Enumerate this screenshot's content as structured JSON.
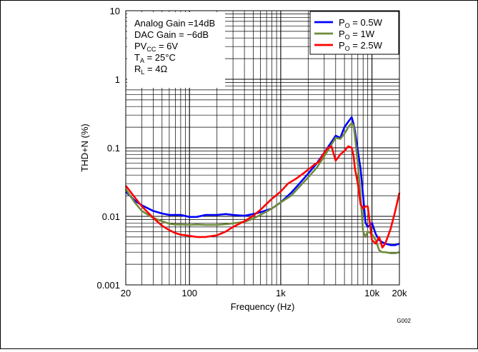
{
  "chart_data": {
    "type": "line",
    "title": "",
    "xlabel": "Frequency (Hz)",
    "ylabel": "THD+N (%)",
    "x_scale": "log",
    "y_scale": "log",
    "xlim": [
      20,
      20000
    ],
    "ylim": [
      0.001,
      10
    ],
    "grid": true,
    "x_ticks": [
      {
        "value": 20,
        "label": "20"
      },
      {
        "value": 100,
        "label": "100"
      },
      {
        "value": 1000,
        "label": "1k"
      },
      {
        "value": 10000,
        "label": "10k"
      },
      {
        "value": 20000,
        "label": "20k"
      }
    ],
    "y_ticks": [
      {
        "value": 0.001,
        "label": "0.001"
      },
      {
        "value": 0.01,
        "label": "0.01"
      },
      {
        "value": 0.1,
        "label": "0.1"
      },
      {
        "value": 1,
        "label": "1"
      },
      {
        "value": 10,
        "label": "10"
      }
    ],
    "annotation": {
      "lines": [
        "Analog Gain =14dB",
        "DAC Gain = −6dB",
        "PVCC = 6V",
        "TA = 25°C",
        "RL = 4Ω"
      ]
    },
    "legend_position": "top-right",
    "series": [
      {
        "name": "PO = 0.5W",
        "color": "#0000ff",
        "x": [
          20,
          25,
          30,
          40,
          50,
          60,
          70,
          80,
          100,
          120,
          150,
          200,
          250,
          300,
          400,
          500,
          600,
          800,
          1000,
          1300,
          1600,
          2000,
          2500,
          3000,
          3500,
          4000,
          4500,
          5000,
          5500,
          6000,
          6300,
          6500,
          7000,
          7500,
          8000,
          8500,
          9000,
          10000,
          11000,
          12000,
          13000,
          14000,
          16000,
          18000,
          20000
        ],
        "y": [
          0.023,
          0.017,
          0.0145,
          0.012,
          0.011,
          0.0105,
          0.0105,
          0.0105,
          0.0098,
          0.0098,
          0.0105,
          0.0105,
          0.0108,
          0.0105,
          0.0102,
          0.0108,
          0.0115,
          0.013,
          0.016,
          0.022,
          0.03,
          0.042,
          0.06,
          0.085,
          0.115,
          0.15,
          0.14,
          0.2,
          0.24,
          0.28,
          0.22,
          0.18,
          0.09,
          0.05,
          0.02,
          0.008,
          0.007,
          0.008,
          0.0055,
          0.0045,
          0.0042,
          0.004,
          0.0038,
          0.0038,
          0.004
        ]
      },
      {
        "name": "PO = 1W",
        "color": "#6f8b3a",
        "x": [
          20,
          25,
          30,
          40,
          50,
          60,
          70,
          80,
          100,
          120,
          150,
          200,
          250,
          300,
          400,
          500,
          600,
          800,
          1000,
          1300,
          1600,
          2000,
          2500,
          3000,
          3500,
          4000,
          4500,
          5000,
          5500,
          6000,
          6300,
          6500,
          7000,
          7500,
          8000,
          8500,
          9000,
          10000,
          11000,
          12000,
          13000,
          14000,
          16000,
          18000,
          20000
        ],
        "y": [
          0.025,
          0.016,
          0.012,
          0.0095,
          0.0085,
          0.0078,
          0.0076,
          0.0076,
          0.0075,
          0.0076,
          0.0075,
          0.0075,
          0.0077,
          0.0079,
          0.0083,
          0.0093,
          0.0105,
          0.013,
          0.016,
          0.02,
          0.027,
          0.037,
          0.052,
          0.075,
          0.105,
          0.14,
          0.135,
          0.16,
          0.2,
          0.23,
          0.21,
          0.15,
          0.06,
          0.02,
          0.006,
          0.005,
          0.006,
          0.0055,
          0.0045,
          0.0032,
          0.003,
          0.003,
          0.0029,
          0.0029,
          0.003
        ]
      },
      {
        "name": "PO = 2.5W",
        "color": "#ff0000",
        "x": [
          20,
          25,
          30,
          40,
          50,
          60,
          70,
          80,
          100,
          120,
          150,
          200,
          250,
          300,
          400,
          500,
          600,
          800,
          1000,
          1200,
          1500,
          1800,
          2000,
          2300,
          2600,
          3000,
          3300,
          3600,
          4000,
          4500,
          5000,
          5500,
          6000,
          6300,
          6500,
          7000,
          7500,
          8000,
          8500,
          9000,
          10000,
          11000,
          12000,
          13000,
          14000,
          16000,
          18000,
          20000
        ],
        "y": [
          0.028,
          0.019,
          0.014,
          0.0095,
          0.0073,
          0.0063,
          0.0057,
          0.0054,
          0.0052,
          0.005,
          0.005,
          0.0053,
          0.006,
          0.007,
          0.0085,
          0.0102,
          0.0125,
          0.018,
          0.023,
          0.03,
          0.036,
          0.043,
          0.048,
          0.056,
          0.062,
          0.085,
          0.1,
          0.105,
          0.065,
          0.08,
          0.09,
          0.105,
          0.1,
          0.075,
          0.05,
          0.03,
          0.015,
          0.013,
          0.014,
          0.014,
          0.0045,
          0.004,
          0.005,
          0.0035,
          0.004,
          0.0065,
          0.012,
          0.022
        ]
      }
    ]
  },
  "figure_id": "G002"
}
